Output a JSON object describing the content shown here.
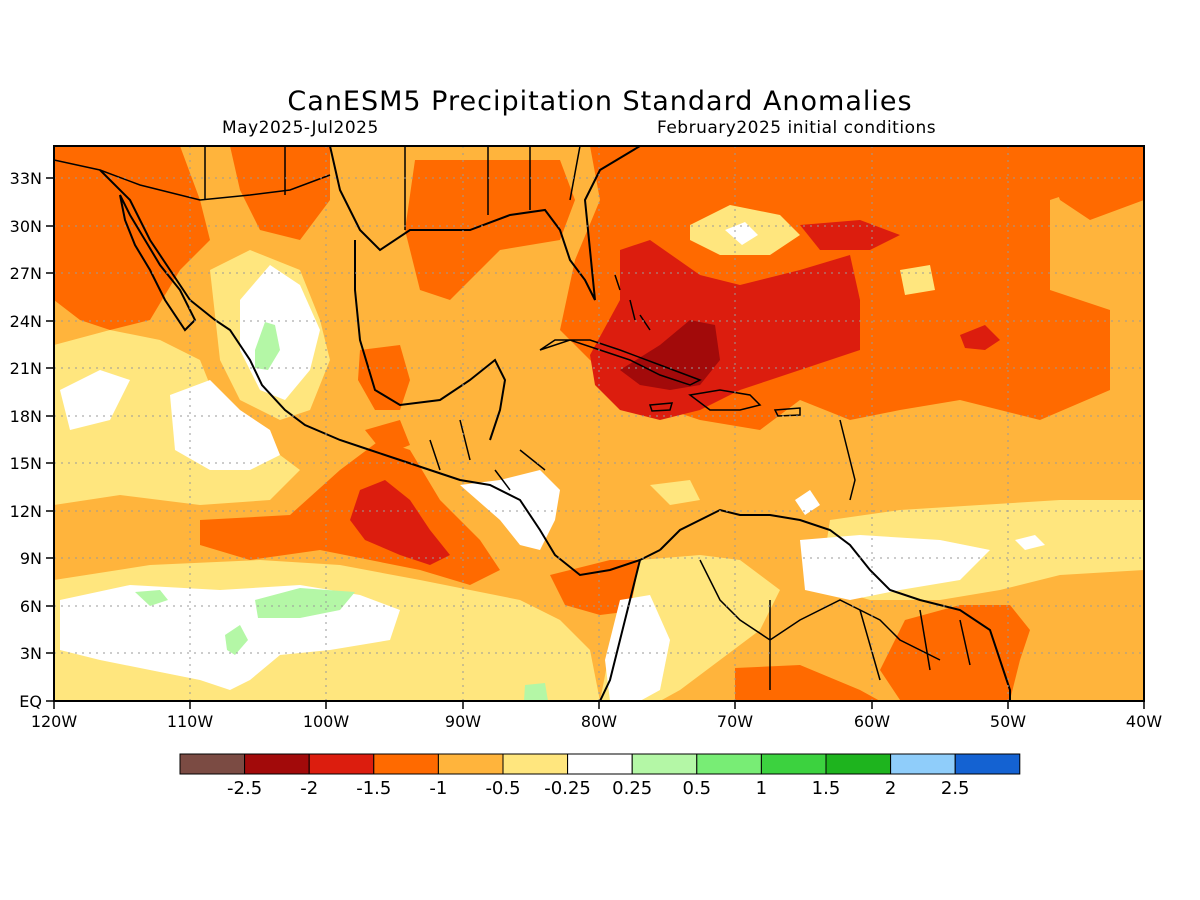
{
  "title": "CanESM5 Precipitation Standard Anomalies",
  "period": "May2025-Jul2025",
  "init": "February2025 initial conditions",
  "lat_ticks": [
    "33N",
    "30N",
    "27N",
    "24N",
    "21N",
    "18N",
    "15N",
    "12N",
    "9N",
    "6N",
    "3N",
    "EQ"
  ],
  "lon_ticks": [
    "120W",
    "110W",
    "100W",
    "90W",
    "80W",
    "70W",
    "60W",
    "50W",
    "40W"
  ],
  "colorbar": {
    "colors": [
      "#7b4b43",
      "#a20a0a",
      "#dc1d0e",
      "#ff6a00",
      "#ffb43c",
      "#ffe67e",
      "#ffffff",
      "#b4f7a6",
      "#78ed75",
      "#3cd23f",
      "#1eb41e",
      "#8fcdfa",
      "#1462d2"
    ],
    "labels": [
      "-2.5",
      "-2",
      "-1.5",
      "-1",
      "-0.5",
      "-0.25",
      "0.25",
      "0.5",
      "1",
      "1.5",
      "2",
      "2.5"
    ]
  },
  "colors": {
    "base": "#ffb43c",
    "strong": "#ff6a00",
    "red": "#dc1d0e",
    "darkred": "#a20a0a",
    "light": "#ffe67e",
    "white": "#ffffff",
    "green": "#b4f7a6"
  }
}
